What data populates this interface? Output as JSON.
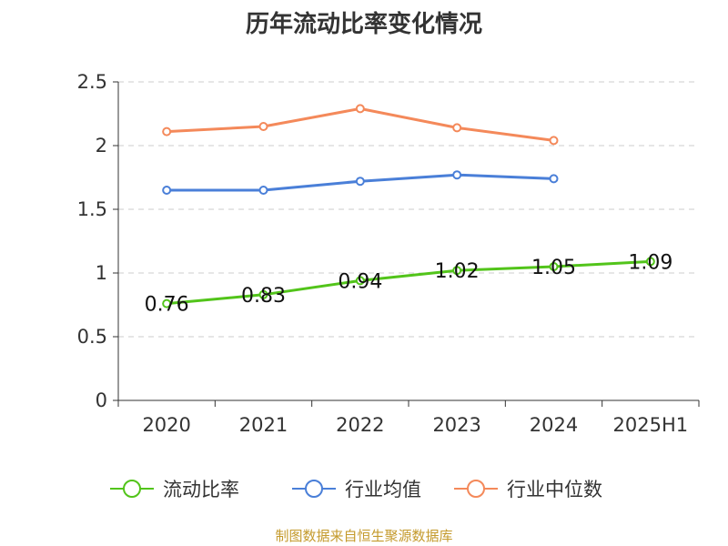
{
  "title": "历年流动比率变化情况",
  "source": "制图数据来自恒生聚源数据库",
  "chart_data": {
    "type": "line",
    "title": "历年流动比率变化情况",
    "categories": [
      "2020",
      "2021",
      "2022",
      "2023",
      "2024",
      "2025H1"
    ],
    "ylim": [
      0,
      2.5
    ],
    "yticks": [
      0,
      0.5,
      1,
      1.5,
      2,
      2.5
    ],
    "ytick_labels": [
      "0",
      "0.5",
      "1",
      "1.5",
      "2",
      "2.5"
    ],
    "grid": true,
    "legend_position": "bottom",
    "series": [
      {
        "name": "流动比率",
        "color": "#52c41a",
        "values": [
          0.76,
          0.83,
          0.94,
          1.02,
          1.05,
          1.09
        ],
        "labels": [
          "0.76",
          "0.83",
          "0.94",
          "1.02",
          "1.05",
          "1.09"
        ]
      },
      {
        "name": "行业均值",
        "color": "#4a7fd8",
        "values": [
          1.65,
          1.65,
          1.72,
          1.77,
          1.74,
          null
        ]
      },
      {
        "name": "行业中位数",
        "color": "#f4895a",
        "values": [
          2.11,
          2.15,
          2.29,
          2.14,
          2.04,
          null
        ]
      }
    ]
  }
}
